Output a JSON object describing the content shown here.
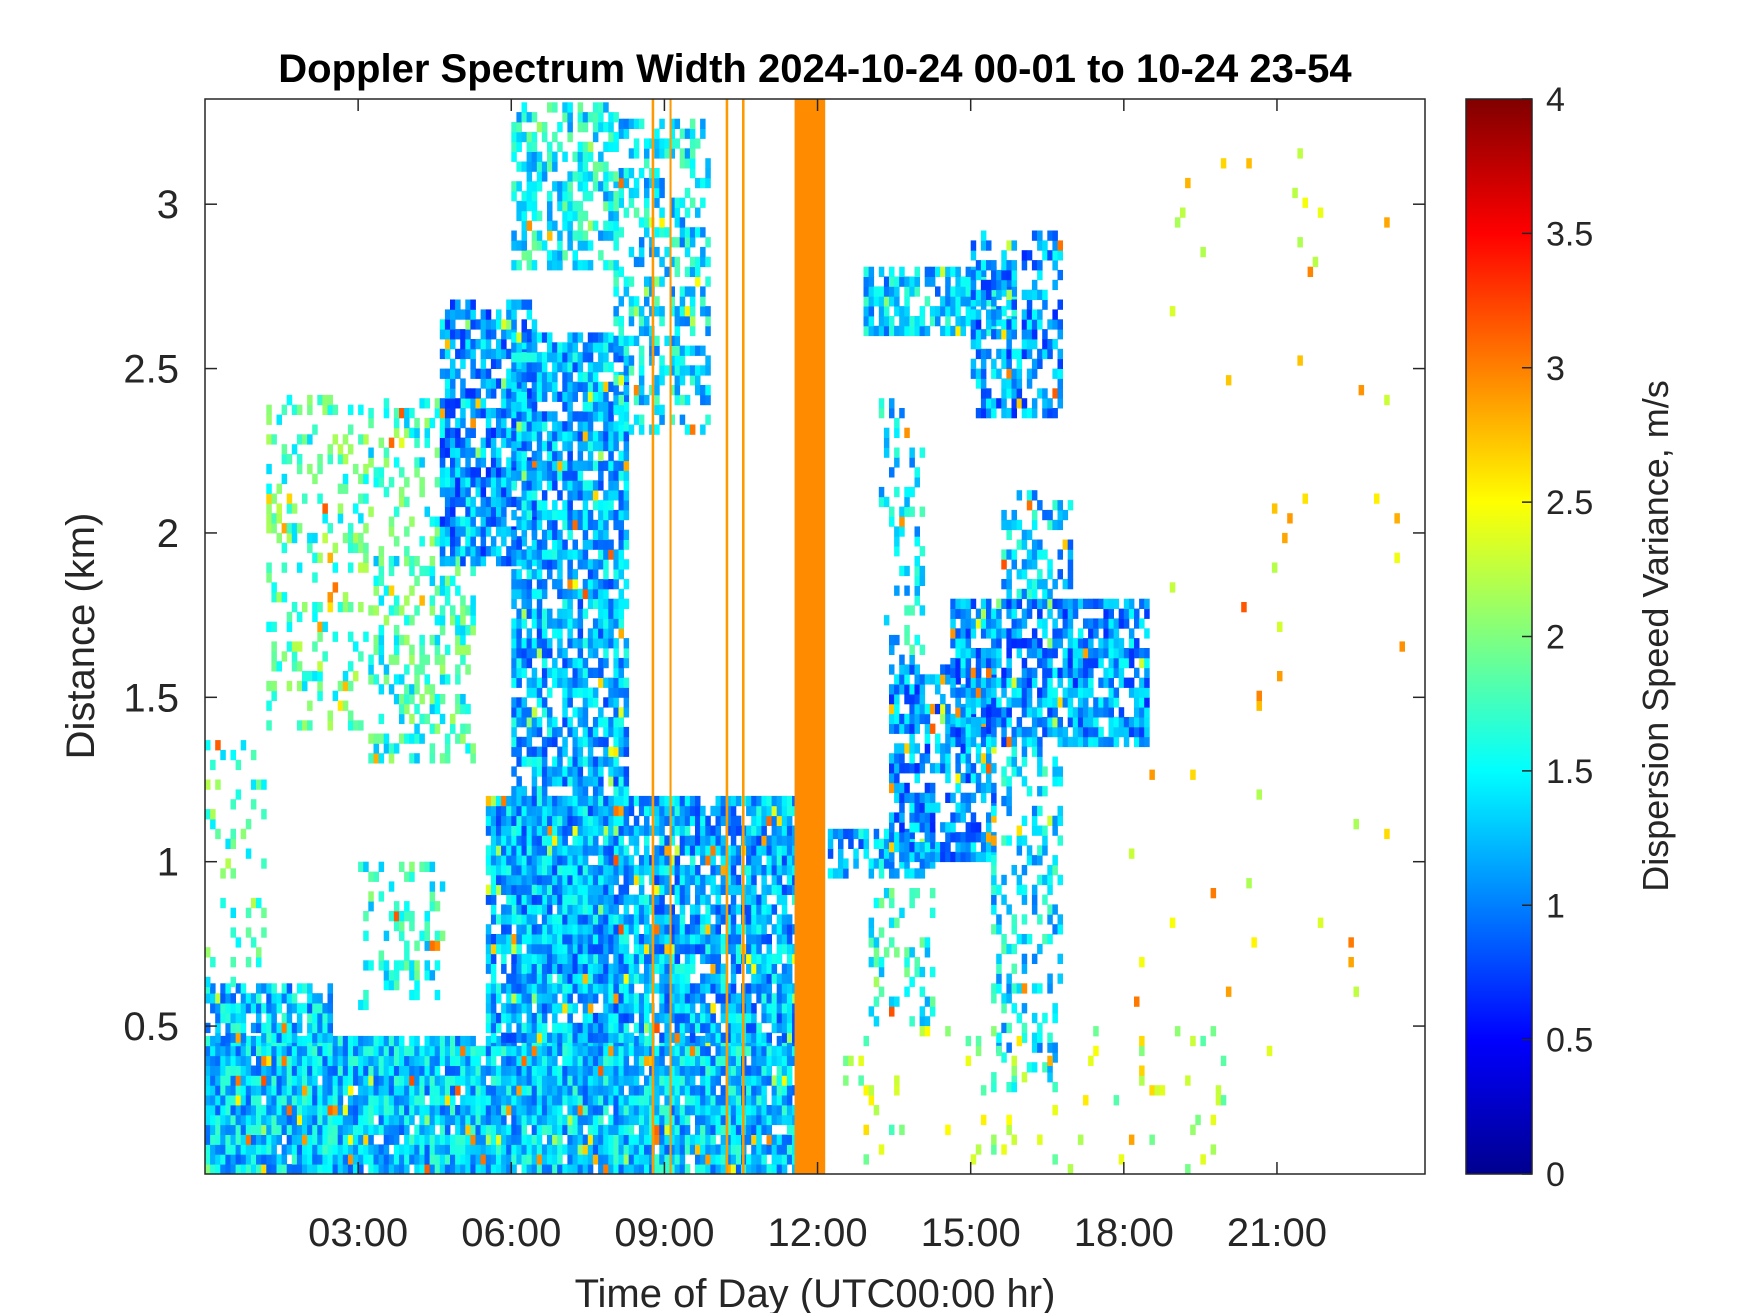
{
  "chart_data": {
    "type": "heatmap",
    "title": "Doppler Spectrum Width 2024-10-24 00-01 to 10-24 23-54",
    "xlabel": "Time of Day (UTC00:00 hr)",
    "ylabel": "Distance (km)",
    "colorbar_label": "Dispersion Speed Variance, m/s",
    "colormap": "jet",
    "xlim": [
      0.0,
      23.9
    ],
    "ylim": [
      0.05,
      3.32
    ],
    "clim": [
      0,
      4
    ],
    "x_ticks": [
      3,
      6,
      9,
      12,
      15,
      18,
      21
    ],
    "x_tick_labels": [
      "03:00",
      "06:00",
      "09:00",
      "12:00",
      "15:00",
      "18:00",
      "21:00"
    ],
    "y_ticks": [
      0.5,
      1,
      1.5,
      2,
      2.5,
      3
    ],
    "y_tick_labels": [
      "0.5",
      "1",
      "1.5",
      "2",
      "2.5",
      "3"
    ],
    "colorbar_ticks": [
      0,
      0.5,
      1,
      1.5,
      2,
      2.5,
      3,
      3.5,
      4
    ],
    "colorbar_tick_labels": [
      "0",
      "0.5",
      "1",
      "1.5",
      "2",
      "2.5",
      "3",
      "3.5",
      "4"
    ],
    "grid": false,
    "regions": [
      {
        "t0": 0.0,
        "t1": 11.5,
        "h0": 0.05,
        "h1": 0.45,
        "value": 1.3,
        "density": 0.95
      },
      {
        "t0": 0.0,
        "t1": 2.5,
        "h0": 0.45,
        "h1": 0.62,
        "value": 1.3,
        "density": 0.75
      },
      {
        "t0": 0.0,
        "t1": 1.2,
        "h0": 0.62,
        "h1": 1.35,
        "value": 1.8,
        "density": 0.18
      },
      {
        "t0": 1.2,
        "t1": 3.2,
        "h0": 1.4,
        "h1": 2.4,
        "value": 1.8,
        "density": 0.25
      },
      {
        "t0": 3.0,
        "t1": 4.6,
        "h0": 0.55,
        "h1": 1.0,
        "value": 1.6,
        "density": 0.25
      },
      {
        "t0": 3.2,
        "t1": 5.2,
        "h0": 1.3,
        "h1": 2.4,
        "value": 1.7,
        "density": 0.35
      },
      {
        "t0": 4.6,
        "t1": 6.4,
        "h0": 1.9,
        "h1": 2.7,
        "value": 1.1,
        "density": 0.75
      },
      {
        "t0": 6.0,
        "t1": 8.2,
        "h0": 0.6,
        "h1": 2.6,
        "value": 1.2,
        "density": 0.75
      },
      {
        "t0": 8.0,
        "t1": 9.8,
        "h0": 2.3,
        "h1": 3.25,
        "value": 1.4,
        "density": 0.45
      },
      {
        "t0": 6.0,
        "t1": 8.0,
        "h0": 2.8,
        "h1": 3.3,
        "value": 1.5,
        "density": 0.6
      },
      {
        "t0": 5.5,
        "t1": 11.5,
        "h0": 0.45,
        "h1": 1.2,
        "value": 1.2,
        "density": 0.85
      },
      {
        "t0": 12.2,
        "t1": 14.2,
        "h0": 0.95,
        "h1": 1.1,
        "value": 1.2,
        "density": 0.7
      },
      {
        "t0": 13.4,
        "t1": 15.4,
        "h0": 1.0,
        "h1": 1.6,
        "value": 1.1,
        "density": 0.7
      },
      {
        "t0": 14.6,
        "t1": 18.5,
        "h0": 1.35,
        "h1": 1.8,
        "value": 1.1,
        "density": 0.75
      },
      {
        "t0": 15.6,
        "t1": 17.0,
        "h0": 1.8,
        "h1": 2.1,
        "value": 1.3,
        "density": 0.5
      },
      {
        "t0": 15.4,
        "t1": 16.8,
        "h0": 0.3,
        "h1": 1.35,
        "value": 1.4,
        "density": 0.35
      },
      {
        "t0": 13.2,
        "t1": 14.0,
        "h0": 1.6,
        "h1": 2.4,
        "value": 1.4,
        "density": 0.3
      },
      {
        "t0": 13.0,
        "t1": 14.2,
        "h0": 0.5,
        "h1": 0.9,
        "value": 1.6,
        "density": 0.3
      },
      {
        "t0": 12.9,
        "t1": 15.8,
        "h0": 2.6,
        "h1": 2.8,
        "value": 1.3,
        "density": 0.75
      },
      {
        "t0": 15.0,
        "t1": 16.8,
        "h0": 2.35,
        "h1": 2.9,
        "value": 1.1,
        "density": 0.6
      },
      {
        "t0": 12.5,
        "t1": 20.0,
        "h0": 0.05,
        "h1": 0.5,
        "value": 2.2,
        "density": 0.06
      },
      {
        "t0": 18.0,
        "t1": 23.5,
        "h0": 0.05,
        "h1": 3.3,
        "value": 2.6,
        "density": 0.008
      }
    ],
    "bands": [
      {
        "t0": 11.55,
        "t1": 12.15,
        "h0": 0.05,
        "h1": 3.32,
        "value": 2.95
      },
      {
        "t0": 8.75,
        "t1": 8.8,
        "h0": 0.05,
        "h1": 3.32,
        "value": 2.9
      },
      {
        "t0": 9.1,
        "t1": 9.14,
        "h0": 0.05,
        "h1": 3.32,
        "value": 2.9
      },
      {
        "t0": 10.2,
        "t1": 10.25,
        "h0": 0.05,
        "h1": 3.32,
        "value": 2.9
      },
      {
        "t0": 10.52,
        "t1": 10.57,
        "h0": 0.05,
        "h1": 3.32,
        "value": 2.9
      }
    ]
  }
}
